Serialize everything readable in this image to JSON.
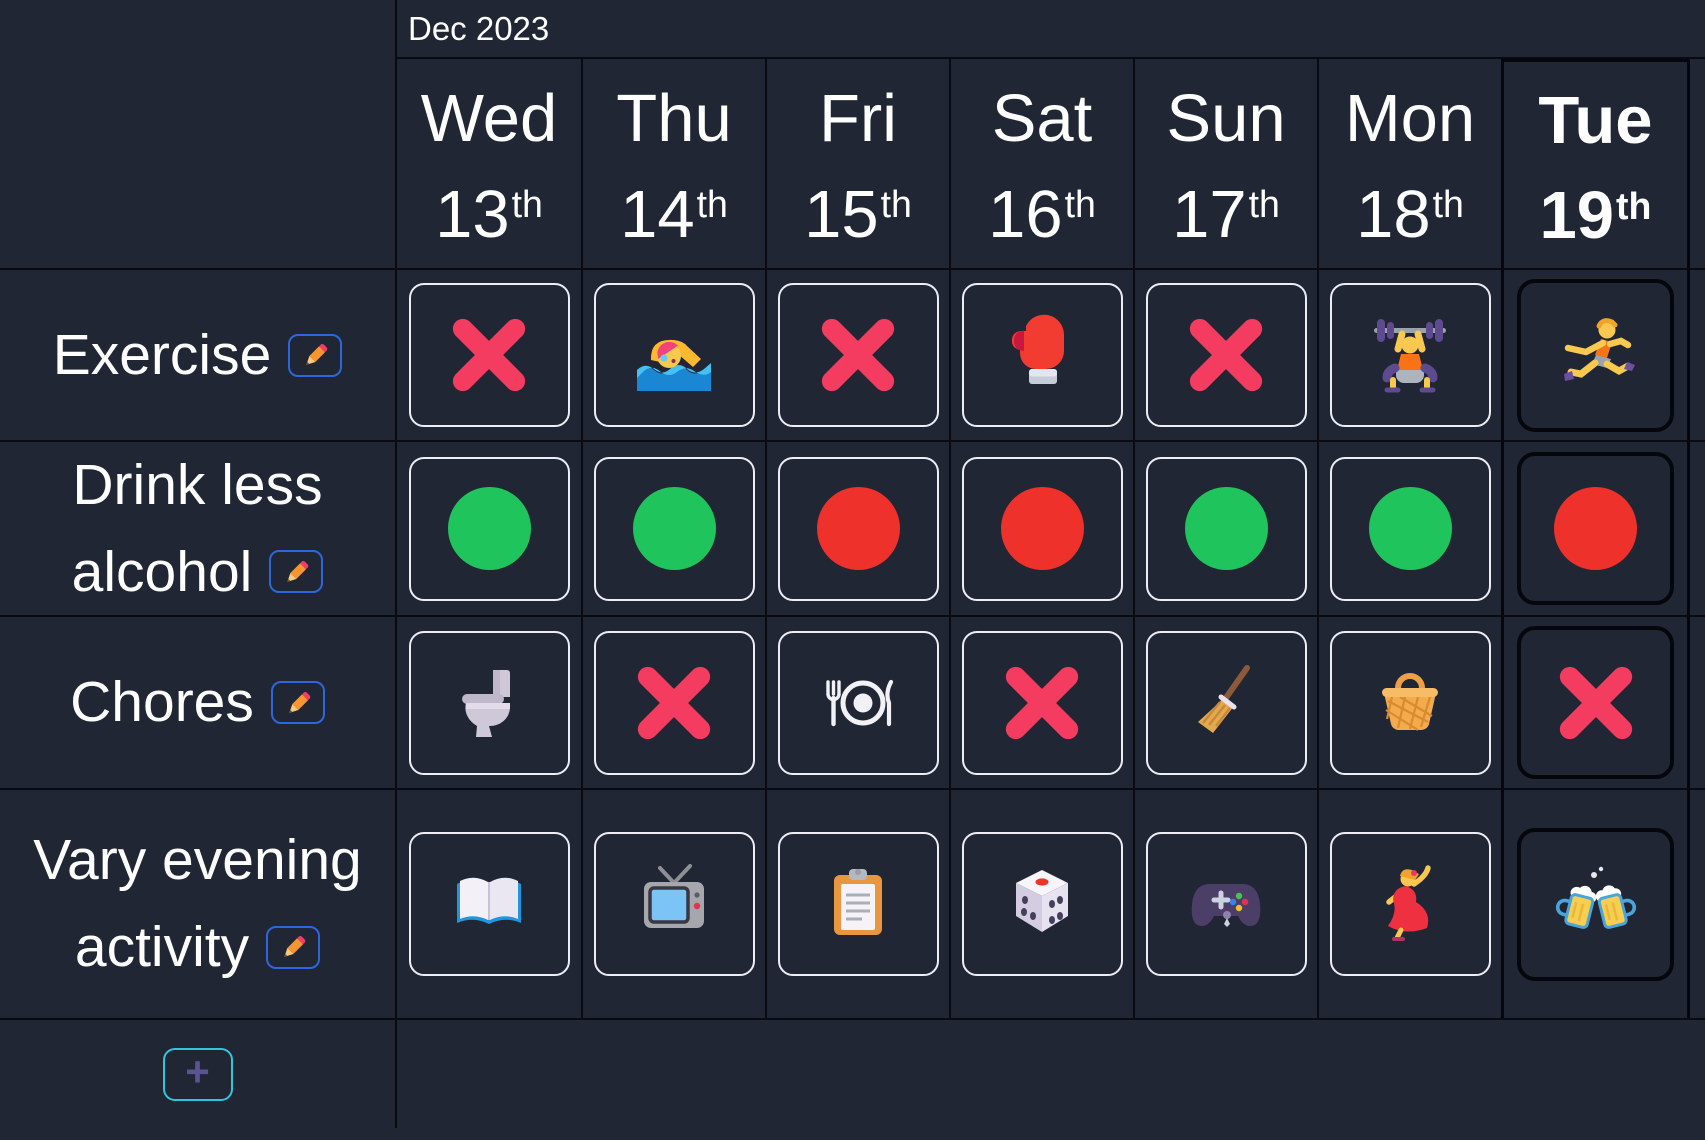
{
  "month_header": {
    "label": "Dec 2023"
  },
  "days": [
    {
      "name": "Wed",
      "date": "13",
      "ordinal": "th",
      "today": false
    },
    {
      "name": "Thu",
      "date": "14",
      "ordinal": "th",
      "today": false
    },
    {
      "name": "Fri",
      "date": "15",
      "ordinal": "th",
      "today": false
    },
    {
      "name": "Sat",
      "date": "16",
      "ordinal": "th",
      "today": false
    },
    {
      "name": "Sun",
      "date": "17",
      "ordinal": "th",
      "today": false
    },
    {
      "name": "Mon",
      "date": "18",
      "ordinal": "th",
      "today": false
    },
    {
      "name": "Tue",
      "date": "19",
      "ordinal": "th",
      "today": true
    }
  ],
  "habits": [
    {
      "name": "Exercise",
      "label_lines": [
        "Exercise"
      ],
      "cells": [
        {
          "icon": "cross-mark"
        },
        {
          "icon": "swimmer"
        },
        {
          "icon": "cross-mark"
        },
        {
          "icon": "boxing-glove"
        },
        {
          "icon": "cross-mark"
        },
        {
          "icon": "weight-lifter"
        },
        {
          "icon": "runner"
        }
      ]
    },
    {
      "name": "Drink less alcohol",
      "label_lines": [
        "Drink less",
        "alcohol"
      ],
      "cells": [
        {
          "icon": "status-circle",
          "color": "#1FC55C"
        },
        {
          "icon": "status-circle",
          "color": "#1FC55C"
        },
        {
          "icon": "status-circle",
          "color": "#EF312B"
        },
        {
          "icon": "status-circle",
          "color": "#EF312B"
        },
        {
          "icon": "status-circle",
          "color": "#1FC55C"
        },
        {
          "icon": "status-circle",
          "color": "#1FC55C"
        },
        {
          "icon": "status-circle",
          "color": "#EF312B"
        }
      ]
    },
    {
      "name": "Chores",
      "label_lines": [
        "Chores"
      ],
      "cells": [
        {
          "icon": "toilet"
        },
        {
          "icon": "cross-mark"
        },
        {
          "icon": "fork-and-plate"
        },
        {
          "icon": "cross-mark"
        },
        {
          "icon": "broom"
        },
        {
          "icon": "basket"
        },
        {
          "icon": "cross-mark"
        }
      ]
    },
    {
      "name": "Vary evening activity",
      "label_lines": [
        "Vary evening",
        "activity"
      ],
      "cells": [
        {
          "icon": "open-book"
        },
        {
          "icon": "television"
        },
        {
          "icon": "clipboard"
        },
        {
          "icon": "game-die"
        },
        {
          "icon": "game-controller"
        },
        {
          "icon": "dancer"
        },
        {
          "icon": "clinking-beer-mugs"
        }
      ]
    }
  ],
  "edit_button": {
    "icon": "pencil"
  },
  "add_button": {
    "label": "+"
  },
  "colors": {
    "background": "#202634",
    "grid_line": "#090b11",
    "cell_border": "#eeedf4",
    "today_border": "#05070d",
    "cross": "#F33C5F",
    "success_green": "#1FC55C",
    "fail_red": "#EF312B",
    "edit_button_border": "#2d66dd",
    "add_button_border": "#35c4de",
    "add_plus": "#5d5392"
  }
}
